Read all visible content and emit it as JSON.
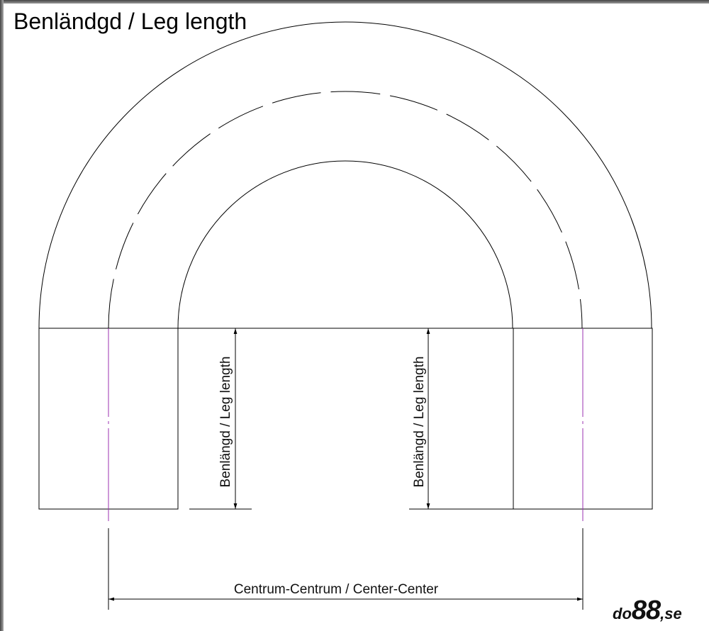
{
  "title": "Benländgd / Leg length",
  "labels": {
    "leg_left": "Benlängd / Leg length",
    "leg_right": "Benlängd / Leg length",
    "center_center": "Centrum-Centrum / Center-Center"
  },
  "logo": {
    "prefix": "do",
    "number": "88",
    "suffix": ",se"
  },
  "colors": {
    "line": "#000000",
    "centerline": "#9b30b0"
  }
}
